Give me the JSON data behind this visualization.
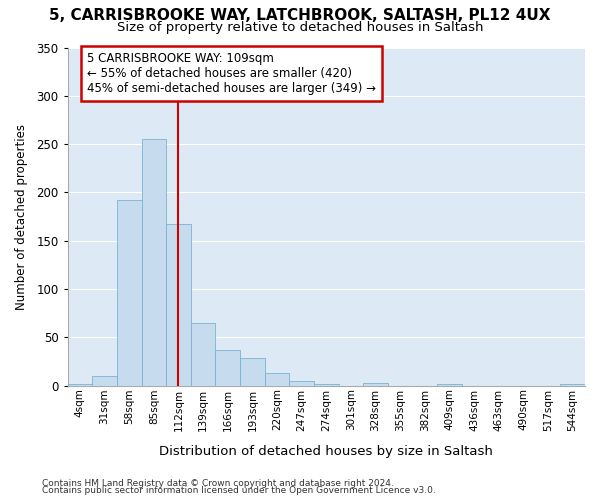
{
  "title1": "5, CARRISBROOKE WAY, LATCHBROOK, SALTASH, PL12 4UX",
  "title2": "Size of property relative to detached houses in Saltash",
  "xlabel": "Distribution of detached houses by size in Saltash",
  "ylabel": "Number of detached properties",
  "bar_color": "#c6dcee",
  "bar_edge_color": "#7ab3d4",
  "plot_bg_color": "#ddeaf5",
  "fig_bg_color": "#ffffff",
  "grid_color": "#ffffff",
  "categories": [
    "4sqm",
    "31sqm",
    "58sqm",
    "85sqm",
    "112sqm",
    "139sqm",
    "166sqm",
    "193sqm",
    "220sqm",
    "247sqm",
    "274sqm",
    "301sqm",
    "328sqm",
    "355sqm",
    "382sqm",
    "409sqm",
    "436sqm",
    "463sqm",
    "490sqm",
    "517sqm",
    "544sqm"
  ],
  "values": [
    2,
    10,
    192,
    255,
    167,
    65,
    37,
    29,
    13,
    5,
    2,
    0,
    3,
    0,
    0,
    2,
    0,
    0,
    0,
    0,
    2
  ],
  "red_line_x": 4.0,
  "annotation_text": "5 CARRISBROOKE WAY: 109sqm\n← 55% of detached houses are smaller (420)\n45% of semi-detached houses are larger (349) →",
  "annotation_box_color": "white",
  "annotation_border_color": "#cc0000",
  "vline_color": "#cc0000",
  "ylim": [
    0,
    350
  ],
  "yticks": [
    0,
    50,
    100,
    150,
    200,
    250,
    300,
    350
  ],
  "footnote1": "Contains HM Land Registry data © Crown copyright and database right 2024.",
  "footnote2": "Contains public sector information licensed under the Open Government Licence v3.0."
}
